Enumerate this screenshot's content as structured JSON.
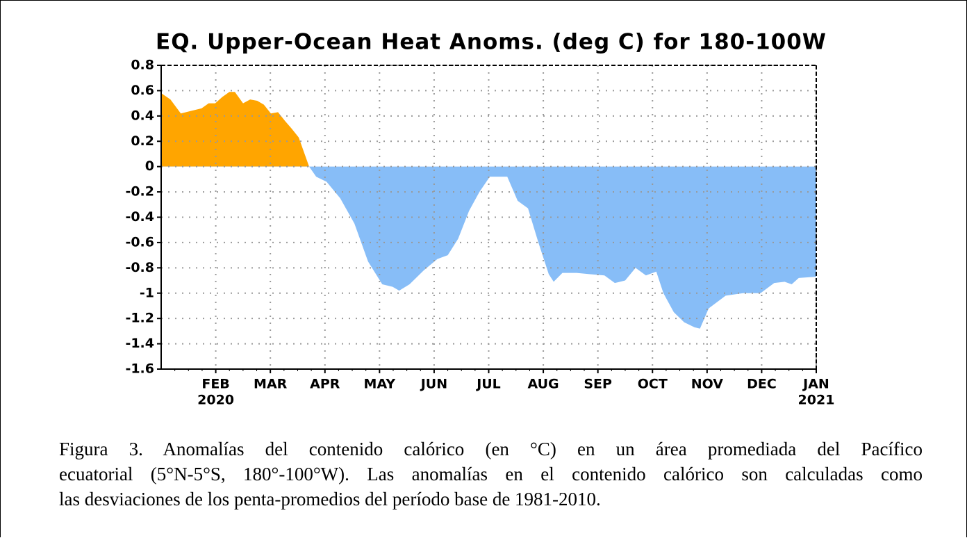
{
  "chart_data": {
    "type": "area",
    "title": "EQ. Upper-Ocean Heat Anoms. (deg C) for 180-100W",
    "x": [
      0,
      0.17,
      0.36,
      0.55,
      0.74,
      0.87,
      0.99,
      1.12,
      1.25,
      1.35,
      1.5,
      1.63,
      1.76,
      1.88,
      2.01,
      2.14,
      2.27,
      2.39,
      2.52,
      2.71,
      2.84,
      3.03,
      3.28,
      3.54,
      3.79,
      4.05,
      4.24,
      4.36,
      4.55,
      4.81,
      5.06,
      5.25,
      5.44,
      5.64,
      5.83,
      6.02,
      6.34,
      6.53,
      6.72,
      6.91,
      7.1,
      7.19,
      7.35,
      7.61,
      7.86,
      8.12,
      8.31,
      8.5,
      8.69,
      8.88,
      9.07,
      9.2,
      9.39,
      9.58,
      9.77,
      9.87,
      10.03,
      10.34,
      10.66,
      10.98,
      11.23,
      11.42,
      11.55,
      11.68,
      12
    ],
    "values": [
      0.58,
      0.53,
      0.42,
      0.44,
      0.46,
      0.5,
      0.5,
      0.55,
      0.59,
      0.59,
      0.5,
      0.53,
      0.52,
      0.49,
      0.42,
      0.43,
      0.36,
      0.3,
      0.23,
      0,
      -0.08,
      -0.12,
      -0.25,
      -0.45,
      -0.75,
      -0.93,
      -0.95,
      -0.98,
      -0.93,
      -0.82,
      -0.73,
      -0.7,
      -0.57,
      -0.35,
      -0.2,
      -0.08,
      -0.08,
      -0.27,
      -0.33,
      -0.6,
      -0.85,
      -0.91,
      -0.84,
      -0.84,
      -0.85,
      -0.86,
      -0.92,
      -0.9,
      -0.8,
      -0.86,
      -0.83,
      -1,
      -1.15,
      -1.23,
      -1.27,
      -1.28,
      -1.12,
      -1.02,
      -1,
      -1,
      -0.92,
      -0.91,
      -0.93,
      -0.88,
      -0.87
    ],
    "positive_color": "#ffa500",
    "negative_color": "#87bdf7",
    "xlim": [
      0,
      12
    ],
    "xticks": [
      {
        "value": 1,
        "label": "FEB",
        "sublabel": "2020"
      },
      {
        "value": 2,
        "label": "MAR"
      },
      {
        "value": 3,
        "label": "APR"
      },
      {
        "value": 4,
        "label": "MAY"
      },
      {
        "value": 5,
        "label": "JUN"
      },
      {
        "value": 6,
        "label": "JUL"
      },
      {
        "value": 7,
        "label": "AUG"
      },
      {
        "value": 8,
        "label": "SEP"
      },
      {
        "value": 9,
        "label": "OCT"
      },
      {
        "value": 10,
        "label": "NOV"
      },
      {
        "value": 11,
        "label": "DEC"
      },
      {
        "value": 12,
        "label": "JAN",
        "sublabel": "2021"
      }
    ],
    "ylim": [
      -1.6,
      0.8
    ],
    "yticks": [
      0.8,
      0.6,
      0.4,
      0.2,
      0,
      -0.2,
      -0.4,
      -0.6,
      -0.8,
      -1,
      -1.2,
      -1.4,
      -1.6
    ],
    "grid": true
  },
  "caption": [
    "Figura 3. Anomalías del contenido calórico (en °C) en un área promediada del Pacífico",
    "ecuatorial (5°N-5°S, 180°-100°W). Las anomalías en el contenido calórico son calculadas como",
    "las desviaciones de los penta-promedios del período base de 1981-2010."
  ]
}
